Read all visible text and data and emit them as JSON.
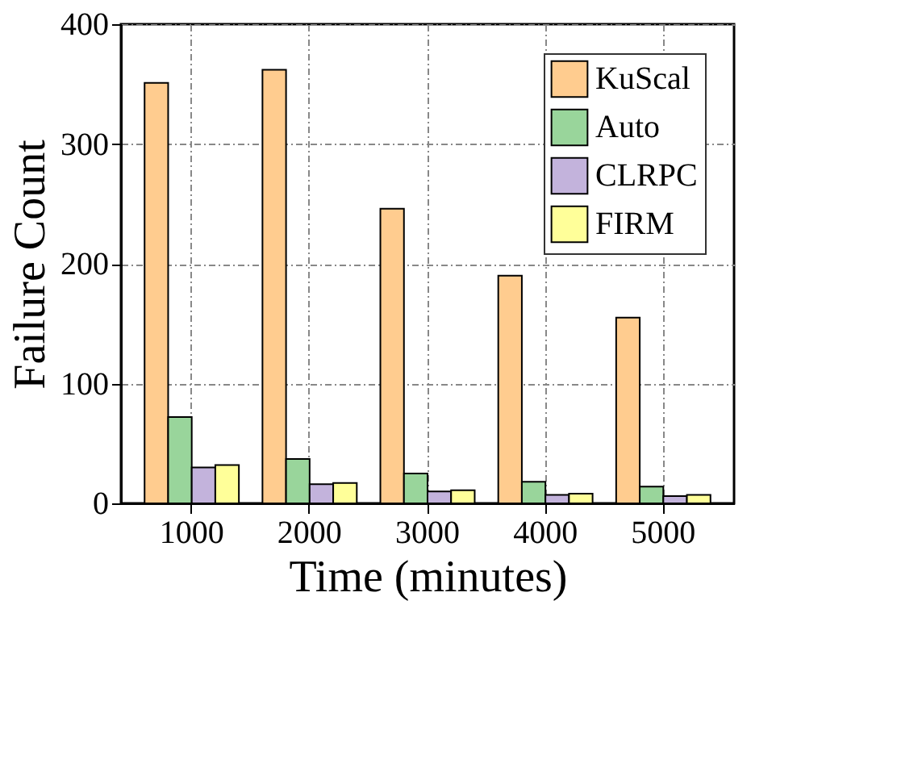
{
  "chart_data": {
    "type": "bar",
    "xlabel": "Time (minutes)",
    "ylabel": "Failure Count",
    "categories": [
      "1000",
      "2000",
      "3000",
      "4000",
      "5000"
    ],
    "series": [
      {
        "name": "KuScal",
        "color": "#ffcc8f",
        "values": [
          351,
          362,
          246,
          190,
          155
        ]
      },
      {
        "name": "Auto",
        "color": "#99d59b",
        "values": [
          72,
          37,
          25,
          18,
          14
        ]
      },
      {
        "name": "CLRPC",
        "color": "#c3b3dc",
        "values": [
          30,
          16,
          10,
          7,
          6
        ]
      },
      {
        "name": "FIRM",
        "color": "#ffff99",
        "values": [
          32,
          17,
          11,
          8,
          7
        ]
      }
    ],
    "ylim": [
      0,
      400
    ],
    "yticks": [
      0,
      100,
      200,
      300,
      400
    ],
    "grid": true,
    "legend": "top right"
  }
}
